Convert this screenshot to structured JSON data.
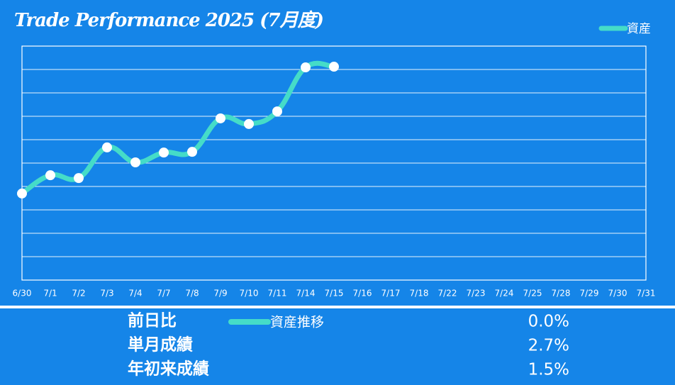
{
  "chart_data": {
    "type": "line",
    "title": "Trade Performance 2025 (7月度)",
    "categories": [
      "6/30",
      "7/1",
      "7/2",
      "7/3",
      "7/4",
      "7/7",
      "7/8",
      "7/9",
      "7/10",
      "7/11",
      "7/14",
      "7/15",
      "7/16",
      "7/17",
      "7/18",
      "7/22",
      "7/23",
      "7/24",
      "7/25",
      "7/28",
      "7/29",
      "7/30",
      "7/31"
    ],
    "series": [
      {
        "name": "資産",
        "color": "#45dcc8",
        "values": [
          3.7,
          4.48,
          4.36,
          5.67,
          5.03,
          5.45,
          5.48,
          6.91,
          6.67,
          7.21,
          9.09,
          9.12,
          null,
          null,
          null,
          null,
          null,
          null,
          null,
          null,
          null,
          null,
          null
        ]
      }
    ],
    "ylim": [
      0,
      10
    ],
    "yticks": [
      0,
      1,
      2,
      3,
      4,
      5,
      6,
      7,
      8,
      9,
      10
    ],
    "y_tick_labels": false,
    "grid": true,
    "legend": "top-right"
  },
  "summary": {
    "legend": "資産推移",
    "rows": [
      {
        "label": "前日比",
        "value": "0.0%"
      },
      {
        "label": "単月成績",
        "value": "2.7%"
      },
      {
        "label": "年初来成績",
        "value": "1.5%"
      }
    ]
  }
}
